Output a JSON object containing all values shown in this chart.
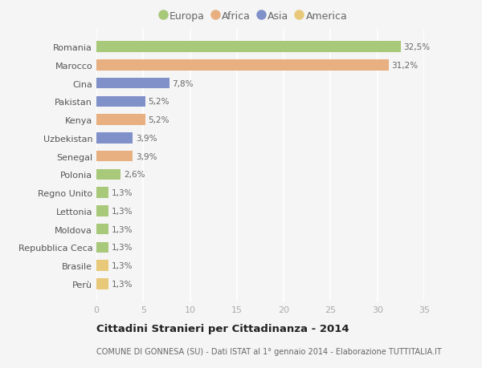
{
  "categories": [
    "Perù",
    "Brasile",
    "Repubblica Ceca",
    "Moldova",
    "Lettonia",
    "Regno Unito",
    "Polonia",
    "Senegal",
    "Uzbekistan",
    "Kenya",
    "Pakistan",
    "Cina",
    "Marocco",
    "Romania"
  ],
  "values": [
    1.3,
    1.3,
    1.3,
    1.3,
    1.3,
    1.3,
    2.6,
    3.9,
    3.9,
    5.2,
    5.2,
    7.8,
    31.2,
    32.5
  ],
  "labels": [
    "1,3%",
    "1,3%",
    "1,3%",
    "1,3%",
    "1,3%",
    "1,3%",
    "2,6%",
    "3,9%",
    "3,9%",
    "5,2%",
    "5,2%",
    "7,8%",
    "31,2%",
    "32,5%"
  ],
  "colors": [
    "#e8c97a",
    "#e8c97a",
    "#a8c87a",
    "#a8c87a",
    "#a8c87a",
    "#a8c87a",
    "#a8c87a",
    "#e8b080",
    "#8090c8",
    "#e8b080",
    "#8090c8",
    "#8090c8",
    "#e8b080",
    "#a8c87a"
  ],
  "continent_colors": {
    "Europa": "#a8c87a",
    "Africa": "#e8b080",
    "Asia": "#8090c8",
    "America": "#e8c97a"
  },
  "title": "Cittadini Stranieri per Cittadinanza - 2014",
  "subtitle": "COMUNE DI GONNESA (SU) - Dati ISTAT al 1° gennaio 2014 - Elaborazione TUTTITALIA.IT",
  "xlim": [
    0,
    35
  ],
  "xticks": [
    0,
    5,
    10,
    15,
    20,
    25,
    30,
    35
  ],
  "background_color": "#f5f5f5",
  "grid_color": "#ffffff",
  "bar_height": 0.6
}
